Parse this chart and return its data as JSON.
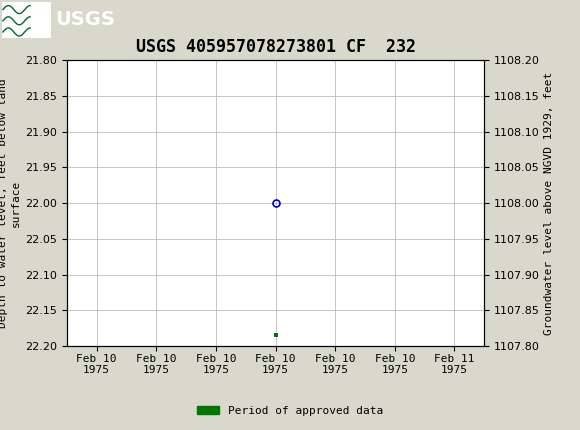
{
  "title": "USGS 405957078273801 CF  232",
  "ylabel_left": "Depth to water level, feet below land\nsurface",
  "ylabel_right": "Groundwater level above NGVD 1929, feet",
  "ylim_left": [
    21.8,
    22.2
  ],
  "ylim_right": [
    1108.2,
    1107.8
  ],
  "yticks_left": [
    21.8,
    21.85,
    21.9,
    21.95,
    22.0,
    22.05,
    22.1,
    22.15,
    22.2
  ],
  "yticks_right": [
    1108.2,
    1108.15,
    1108.1,
    1108.05,
    1108.0,
    1107.95,
    1107.9,
    1107.85,
    1107.8
  ],
  "data_point_x": 3.0,
  "data_point_y": 22.0,
  "data_point_color": "#0000bb",
  "green_marker_x": 3.0,
  "green_marker_y": 22.185,
  "green_color": "#007700",
  "header_color": "#006633",
  "plot_bg_color": "#ffffff",
  "background_color": "#d8d8cc",
  "grid_color": "#bbbbbb",
  "xtick_positions": [
    0,
    1,
    2,
    3,
    4,
    5,
    6
  ],
  "xtick_labels": [
    "Feb 10\n1975",
    "Feb 10\n1975",
    "Feb 10\n1975",
    "Feb 10\n1975",
    "Feb 10\n1975",
    "Feb 10\n1975",
    "Feb 11\n1975"
  ],
  "xlim": [
    -0.5,
    6.5
  ],
  "legend_label": "Period of approved data",
  "title_fontsize": 12,
  "axis_label_fontsize": 8,
  "tick_fontsize": 8
}
